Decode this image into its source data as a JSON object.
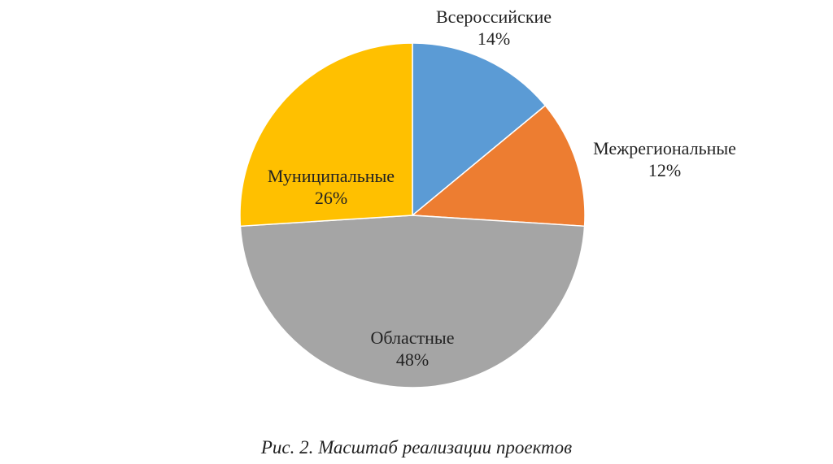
{
  "chart_data": {
    "type": "pie",
    "title": "",
    "slices": [
      {
        "label": "Всероссийские",
        "value": 14,
        "value_label": "14%",
        "color": "#5B9BD5"
      },
      {
        "label": "Межрегиональные",
        "value": 12,
        "value_label": "12%",
        "color": "#ED7D31"
      },
      {
        "label": "Областные",
        "value": 48,
        "value_label": "48%",
        "color": "#A5A5A5"
      },
      {
        "label": "Муниципальные",
        "value": 26,
        "value_label": "26%",
        "color": "#FFC000"
      }
    ],
    "start_angle": "12 o'clock",
    "direction": "clockwise",
    "legend": "none"
  },
  "caption": "Рис. 2. Масштаб реализации проектов"
}
